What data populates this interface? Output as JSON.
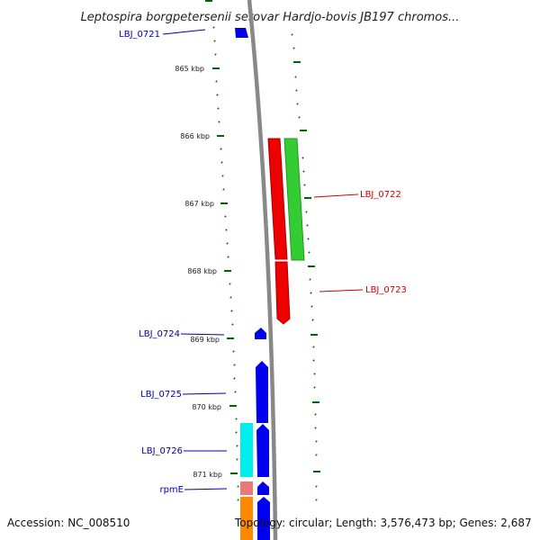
{
  "title": "Leptospira borgpetersenii serovar Hardjo-bovis JB197 chromos...",
  "footer": {
    "accession": "Accession: NC_008510",
    "summary": "Topology: circular; Length: 3,576,473 bp; Genes: 2,687"
  },
  "ticks": [
    "865 kbp",
    "866 kbp",
    "867 kbp",
    "868 kbp",
    "869 kbp",
    "870 kbp",
    "871 kbp"
  ],
  "genes": [
    {
      "name": "LBJ_0721",
      "color": "#0000dd"
    },
    {
      "name": "LBJ_0722",
      "color": "#cc0000"
    },
    {
      "name": "LBJ_0723",
      "color": "#cc0000"
    },
    {
      "name": "LBJ_0724",
      "color": "#0000aa"
    },
    {
      "name": "LBJ_0725",
      "color": "#0000aa"
    },
    {
      "name": "LBJ_0726",
      "color": "#0000aa"
    },
    {
      "name": "rpmE",
      "color": "#0000aa"
    }
  ],
  "colors": {
    "backbone": "#888888",
    "tick": "#006600",
    "forward_red": "#ee0000",
    "forward_green": "#33cc33",
    "reverse_blue": "#0000ee",
    "cyan": "#00eeee",
    "pink": "#ee7777",
    "orange": "#ff8800"
  }
}
